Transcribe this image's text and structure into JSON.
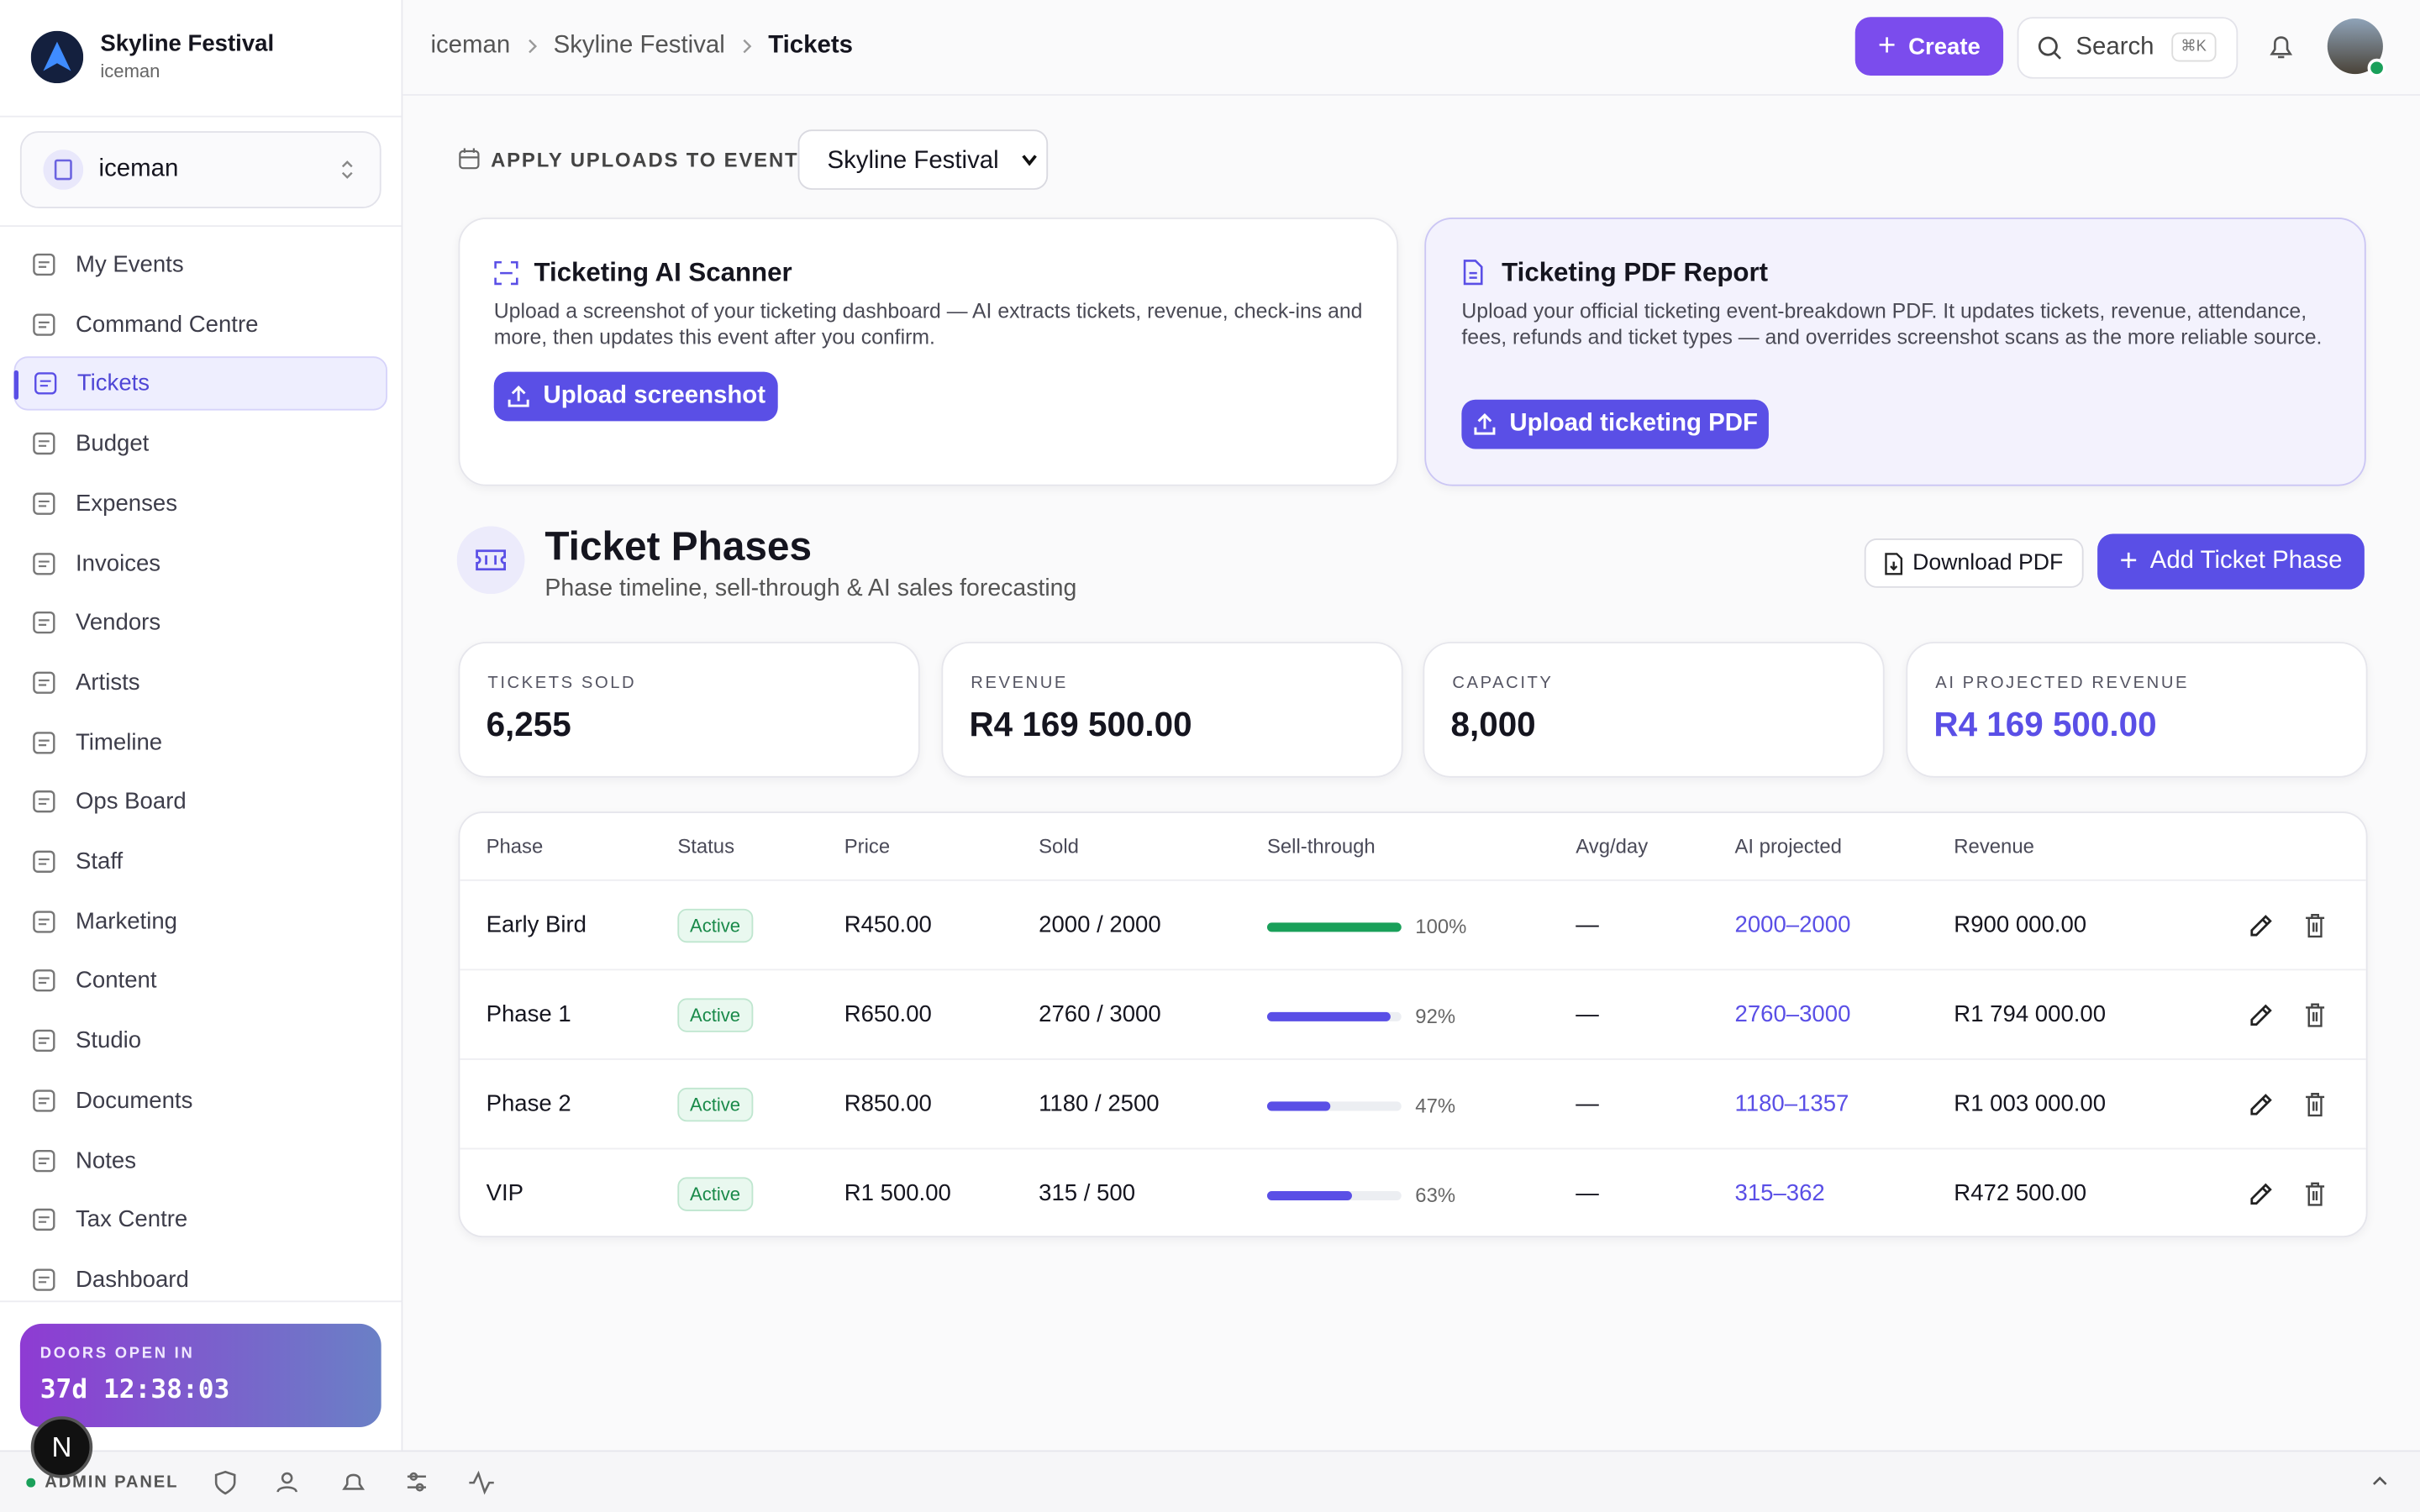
{
  "sidebar": {
    "org_name": "Skyline Festival",
    "org_user": "iceman",
    "workspace": "iceman",
    "nav": [
      "My Events",
      "Command Centre",
      "Tickets",
      "Budget",
      "Expenses",
      "Invoices",
      "Vendors",
      "Artists",
      "Timeline",
      "Ops Board",
      "Staff",
      "Marketing",
      "Content",
      "Studio",
      "Documents",
      "Notes",
      "Tax Centre",
      "Dashboard"
    ],
    "active": "Tickets",
    "countdown_label": "DOORS OPEN IN",
    "countdown": "37d 12:38:03",
    "admin_panel": "ADMIN PANEL",
    "avatar_letter": "N"
  },
  "header": {
    "breadcrumbs": [
      "iceman",
      "Skyline Festival",
      "Tickets"
    ],
    "create": "Create",
    "search": "Search",
    "shortcut": "⌘K"
  },
  "apply": {
    "label": "APPLY UPLOADS TO EVENT",
    "event": "Skyline Festival"
  },
  "cards": [
    {
      "title": "Ticketing AI Scanner",
      "text": "Upload a screenshot of your ticketing dashboard — AI extracts tickets, revenue, check-ins and more, then updates this event after you confirm.",
      "button": "Upload screenshot"
    },
    {
      "title": "Ticketing PDF Report",
      "text": "Upload your official ticketing event-breakdown PDF. It updates tickets, revenue, attendance, fees, refunds and ticket types — and overrides screenshot scans as the more reliable source.",
      "button": "Upload ticketing PDF"
    }
  ],
  "section": {
    "title": "Ticket Phases",
    "subtitle": "Phase timeline, sell-through & AI sales forecasting",
    "download": "Download PDF",
    "add": "Add Ticket Phase"
  },
  "stats": [
    {
      "label": "TICKETS SOLD",
      "value": "6,255"
    },
    {
      "label": "REVENUE",
      "value": "R4 169 500.00"
    },
    {
      "label": "CAPACITY",
      "value": "8,000"
    },
    {
      "label": "AI PROJECTED REVENUE",
      "value": "R4 169 500.00"
    }
  ],
  "table": {
    "headers": [
      "Phase",
      "Status",
      "Price",
      "Sold",
      "Sell-through",
      "Avg/day",
      "AI projected",
      "Revenue"
    ],
    "rows": [
      {
        "phase": "Early Bird",
        "status": "Active",
        "price": "R450.00",
        "sold": "2000 / 2000",
        "sell_through": {
          "value": 100,
          "label": "100%"
        },
        "avg": "—",
        "projected": "2000–2000",
        "revenue": "R900 000.00"
      },
      {
        "phase": "Phase 1",
        "status": "Active",
        "price": "R650.00",
        "sold": "2760 / 3000",
        "sell_through": {
          "value": 92,
          "label": "92%"
        },
        "avg": "—",
        "projected": "2760–3000",
        "revenue": "R1 794 000.00"
      },
      {
        "phase": "Phase 2",
        "status": "Active",
        "price": "R850.00",
        "sold": "1180 / 2500",
        "sell_through": {
          "value": 47,
          "label": "47%"
        },
        "avg": "—",
        "projected": "1180–1357",
        "revenue": "R1 003 000.00"
      },
      {
        "phase": "VIP",
        "status": "Active",
        "price": "R1 500.00",
        "sold": "315 / 500",
        "sell_through": {
          "value": 63,
          "label": "63%"
        },
        "avg": "—",
        "projected": "315–362",
        "revenue": "R472 500.00"
      }
    ]
  }
}
